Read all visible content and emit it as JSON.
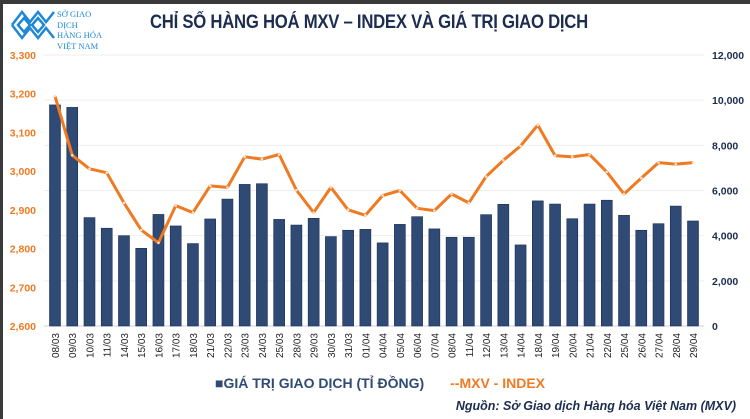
{
  "logo": {
    "line1": "SỞ GIAO DỊCH",
    "line2": "HÀNG HÓA",
    "line3": "VIỆT NAM",
    "color": "#1e88d6"
  },
  "title": "CHỈ SỐ HÀNG HOÁ MXV – INDEX VÀ GIÁ TRỊ GIAO DỊCH",
  "source": "Nguồn: Sở Giao dịch Hàng hóa Việt Nam (MXV)",
  "chart_data": {
    "type": "bar+line",
    "title": "CHỈ SỐ HÀNG HOÁ MXV – INDEX VÀ GIÁ TRỊ GIAO DỊCH",
    "categories": [
      "08/03",
      "09/03",
      "10/03",
      "11/03",
      "14/03",
      "15/03",
      "16/03",
      "17/03",
      "18/03",
      "21/03",
      "22/03",
      "23/03",
      "24/03",
      "25/03",
      "28/03",
      "29/03",
      "30/03",
      "31/03",
      "01/04",
      "04/04",
      "05/04",
      "06/04",
      "07/04",
      "08/04",
      "11/04",
      "12/04",
      "13/04",
      "14/04",
      "18/04",
      "19/04",
      "20/04",
      "21/04",
      "22/04",
      "25/04",
      "26/04",
      "27/04",
      "28/04",
      "29/04"
    ],
    "series": [
      {
        "name": "GIÁ TRỊ GIAO DỊCH (TỈ ĐỒNG)",
        "type": "bar",
        "axis": "right",
        "color": "#2f4a74",
        "values": [
          9790,
          9680,
          4800,
          4330,
          4000,
          3440,
          4940,
          4430,
          3650,
          4740,
          5620,
          6270,
          6300,
          4720,
          4470,
          4770,
          3960,
          4240,
          4280,
          3680,
          4500,
          4840,
          4300,
          3930,
          3930,
          4930,
          5390,
          3590,
          5540,
          5400,
          4750,
          5400,
          5570,
          4900,
          4240,
          4530,
          5310,
          4650
        ]
      },
      {
        "name": "MXV - INDEX",
        "type": "line",
        "axis": "left",
        "color": "#f07a22",
        "values": [
          3194,
          3041,
          3006,
          2996,
          2918,
          2848,
          2815,
          2911,
          2893,
          2962,
          2958,
          3037,
          3031,
          3043,
          2951,
          2893,
          2958,
          2900,
          2886,
          2937,
          2950,
          2904,
          2898,
          2941,
          2918,
          2986,
          3028,
          3065,
          3119,
          3040,
          3037,
          3043,
          2998,
          2941,
          2982,
          3022,
          3018,
          3022
        ]
      }
    ],
    "left_axis": {
      "range": [
        2600,
        3300
      ],
      "ticks": [
        "2,600",
        "2,700",
        "2,800",
        "2,900",
        "3,000",
        "3,100",
        "3,200",
        "3,300"
      ],
      "color": "#f07a22"
    },
    "right_axis": {
      "range": [
        0,
        12000
      ],
      "ticks": [
        "0",
        "2,000",
        "4,000",
        "6,000",
        "8,000",
        "10,000",
        "12,000"
      ],
      "color": "#1d2d50"
    },
    "grid": true,
    "legend": "bottom",
    "legend_labels": {
      "bar": "GIÁ TRỊ GIAO DỊCH (TỈ ĐỒNG)",
      "line": "MXV - INDEX"
    }
  }
}
